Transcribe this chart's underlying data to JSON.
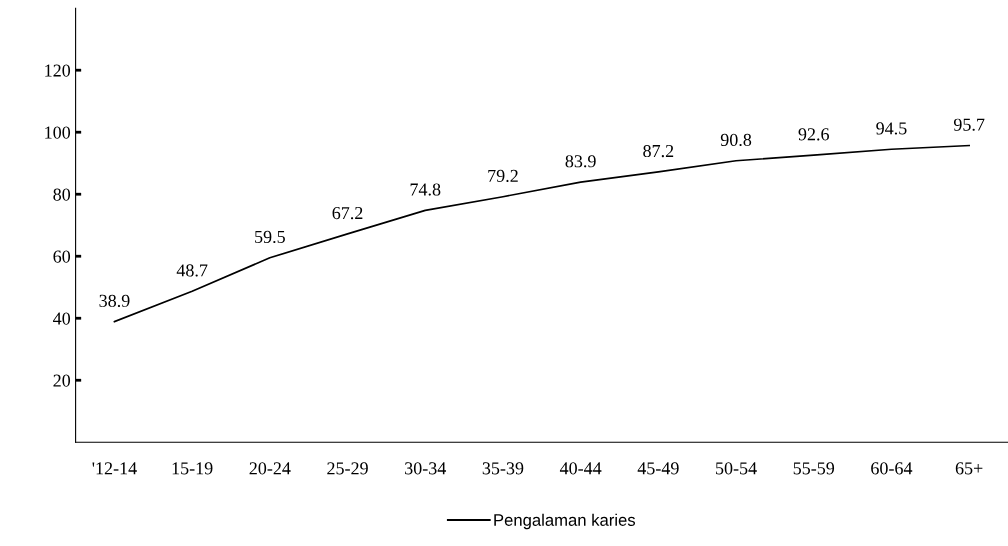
{
  "chart_data": {
    "type": "line",
    "categories": [
      "'12-14",
      "15-19",
      "20-24",
      "25-29",
      "30-34",
      "35-39",
      "40-44",
      "45-49",
      "50-54",
      "55-59",
      "60-64",
      "65+"
    ],
    "series": [
      {
        "name": "Pengalaman karies",
        "color": "#000000",
        "values": [
          38.9,
          48.7,
          59.5,
          67.2,
          74.8,
          79.2,
          83.9,
          87.2,
          90.8,
          92.6,
          94.5,
          95.7
        ]
      }
    ],
    "ylim": [
      0,
      140
    ],
    "yticks": [
      20,
      40,
      60,
      80,
      100,
      120
    ],
    "data_labels": true,
    "grid": false,
    "legend": "bottom",
    "marker": "none",
    "line_style": "solid"
  }
}
